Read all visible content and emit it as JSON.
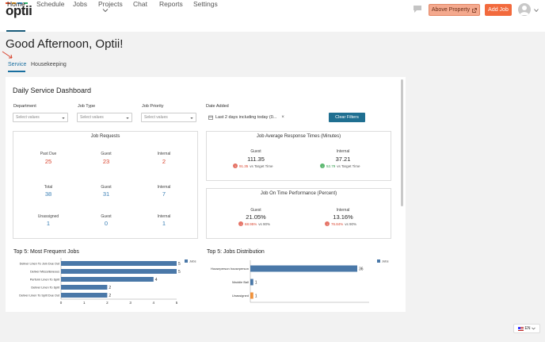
{
  "app": {
    "logo": "optii",
    "nav": [
      "Home",
      "Schedule",
      "Jobs",
      "Projects",
      "Chat",
      "Reports",
      "Settings"
    ],
    "property_button": "Above Property",
    "add_job_button": "Add Job"
  },
  "greeting": "Good Afternoon, Optii!",
  "subtabs": [
    "Service",
    "Housekeeping"
  ],
  "dashboard": {
    "title": "Daily Service Dashboard",
    "filters": {
      "department_label": "Department",
      "job_type_label": "Job Type",
      "job_priority_label": "Job Priority",
      "date_added_label": "Date Added",
      "select_placeholder": "Select values",
      "date_value": "Last 2 days including today (0...",
      "clear_button": "Clear Filters"
    },
    "job_requests": {
      "title": "Job Requests",
      "rows": [
        [
          {
            "label": "Past Due",
            "value": "25"
          },
          {
            "label": "Guest",
            "value": "23"
          },
          {
            "label": "Internal",
            "value": "2"
          }
        ],
        [
          {
            "label": "Total",
            "value": "38"
          },
          {
            "label": "Guest",
            "value": "31"
          },
          {
            "label": "Internal",
            "value": "7"
          }
        ],
        [
          {
            "label": "Unassigned",
            "value": "1"
          },
          {
            "label": "Guest",
            "value": "0"
          },
          {
            "label": "Internal",
            "value": "1"
          }
        ]
      ]
    },
    "response_times": {
      "title": "Job Average Response Times (Minutes)",
      "guest_label": "Guest",
      "guest_value": "111.35",
      "guest_delta": "91.35",
      "guest_vs": "vs Target Time",
      "internal_label": "Internal",
      "internal_value": "37.21",
      "internal_delta": "52.79",
      "internal_vs": "vs Target Time"
    },
    "on_time": {
      "title": "Job On Time Performance (Percent)",
      "guest_label": "Guest",
      "guest_value": "21.05%",
      "guest_delta": "68.95%",
      "guest_vs": "vs 90%",
      "internal_label": "Internal",
      "internal_value": "13.16%",
      "internal_delta": "76.84%",
      "internal_vs": "vs 90%"
    }
  },
  "colors": {
    "accent": "#1f6f91",
    "bar": "#4a78a8",
    "bar_orange": "#f0913a",
    "red": "#d9442e"
  },
  "chart_data": [
    {
      "type": "bar",
      "title": "Top 5: Most Frequent Jobs",
      "orientation": "horizontal",
      "categories": [
        "Deliver Linen To Join Due Out",
        "Deliver Miscellaneous",
        "Perform Linen To Split",
        "Deliver Linen To Split",
        "Deliver Linen To Split Due Out"
      ],
      "series": [
        {
          "name": "Jobs",
          "values": [
            5,
            5,
            4,
            2,
            2
          ]
        }
      ],
      "value_labels": [
        "5",
        "5",
        "4",
        "2",
        "2"
      ],
      "xlim": [
        0,
        5
      ],
      "xticks": [
        "0",
        "1",
        "2",
        "3",
        "4",
        "5"
      ],
      "legend": "top-right"
    },
    {
      "type": "bar",
      "title": "Top 5: Jobs Distribution",
      "orientation": "horizontal",
      "categories": [
        "Houseperson houseperson",
        "Maddie Ball",
        "Unassigned"
      ],
      "series": [
        {
          "name": "Jobs",
          "values": [
            36,
            1,
            1
          ]
        }
      ],
      "value_labels": [
        "36",
        "1",
        "1"
      ],
      "xlim": [
        0,
        40
      ],
      "xticks": [
        "0",
        "10",
        "20",
        "30",
        "40"
      ],
      "legend": "top-right"
    }
  ],
  "language": "EN"
}
